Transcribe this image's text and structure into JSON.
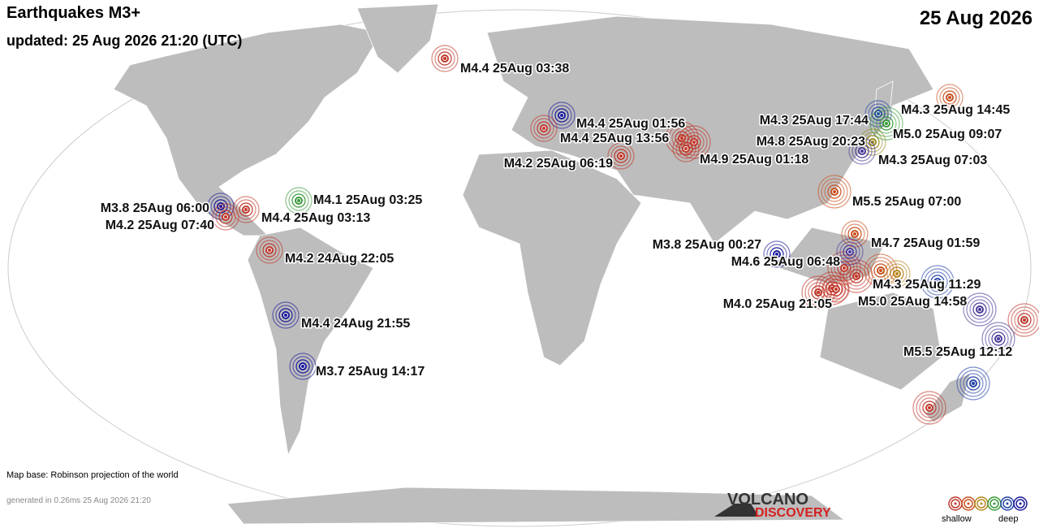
{
  "header": {
    "title": "Earthquakes M3+",
    "updated": "updated: 25 Aug 2026 21:20 (UTC)",
    "date": "25 Aug 2026"
  },
  "quakes": [
    {
      "label": "M4.4 25Aug 03:38",
      "color": "#c0392b"
    },
    {
      "label": "M4.4 25Aug 01:56",
      "color": "#1a1a9a"
    },
    {
      "label": "M4.4 25Aug 13:56",
      "color": "#c0392b"
    },
    {
      "label": "M4.2 25Aug 06:19",
      "color": "#c0392b"
    },
    {
      "label": "M4.9 25Aug 01:18",
      "color": "#c0392b"
    },
    {
      "label": "M4.3 25Aug 17:44",
      "color": "#2343a8"
    },
    {
      "label": "M4.8 25Aug 20:23",
      "color": "#9a8a20"
    },
    {
      "label": "M4.3 25Aug 14:45",
      "color": "#c8501e"
    },
    {
      "label": "M5.0 25Aug 09:07",
      "color": "#3a9a3a"
    },
    {
      "label": "M4.3 25Aug 07:03",
      "color": "#4a3a9a"
    },
    {
      "label": "M5.5 25Aug 07:00",
      "color": "#c8501e"
    },
    {
      "label": "M4.1 25Aug 03:25",
      "color": "#3a9a3a"
    },
    {
      "label": "M4.4 25Aug 03:13",
      "color": "#c0392b"
    },
    {
      "label": "M3.8 25Aug 06:00",
      "color": "#1a1a9a"
    },
    {
      "label": "M4.2 25Aug 07:40",
      "color": "#c0392b"
    },
    {
      "label": "M4.2 24Aug 22:05",
      "color": "#c0392b"
    },
    {
      "label": "M4.4 24Aug 21:55",
      "color": "#1a1a9a"
    },
    {
      "label": "M3.7 25Aug 14:17",
      "color": "#1a1a9a"
    },
    {
      "label": "M4.7 25Aug 01:59",
      "color": "#c8501e"
    },
    {
      "label": "M3.8 25Aug 00:27",
      "color": "#1a1a9a"
    },
    {
      "label": "M4.6 25Aug 06:48",
      "color": "#4a3a9a"
    },
    {
      "label": "M4.3 25Aug 11:29",
      "color": "#b8861e"
    },
    {
      "label": "M5.0 25Aug 14:58",
      "color": "#2343a8"
    },
    {
      "label": "M4.0 25Aug 21:05",
      "color": "#c0392b"
    },
    {
      "label": "M5.5 25Aug 12:12",
      "color": "#4a3a9a"
    }
  ],
  "footer": {
    "map_base": "Map base: Robinson projection of the world",
    "generated": "generated in 0.26ms 25 Aug 2026 21:20",
    "logo_top": "VOLCANO",
    "logo_bottom": "DISCOVERY",
    "legend_shallow": "shallow",
    "legend_deep": "deep"
  }
}
